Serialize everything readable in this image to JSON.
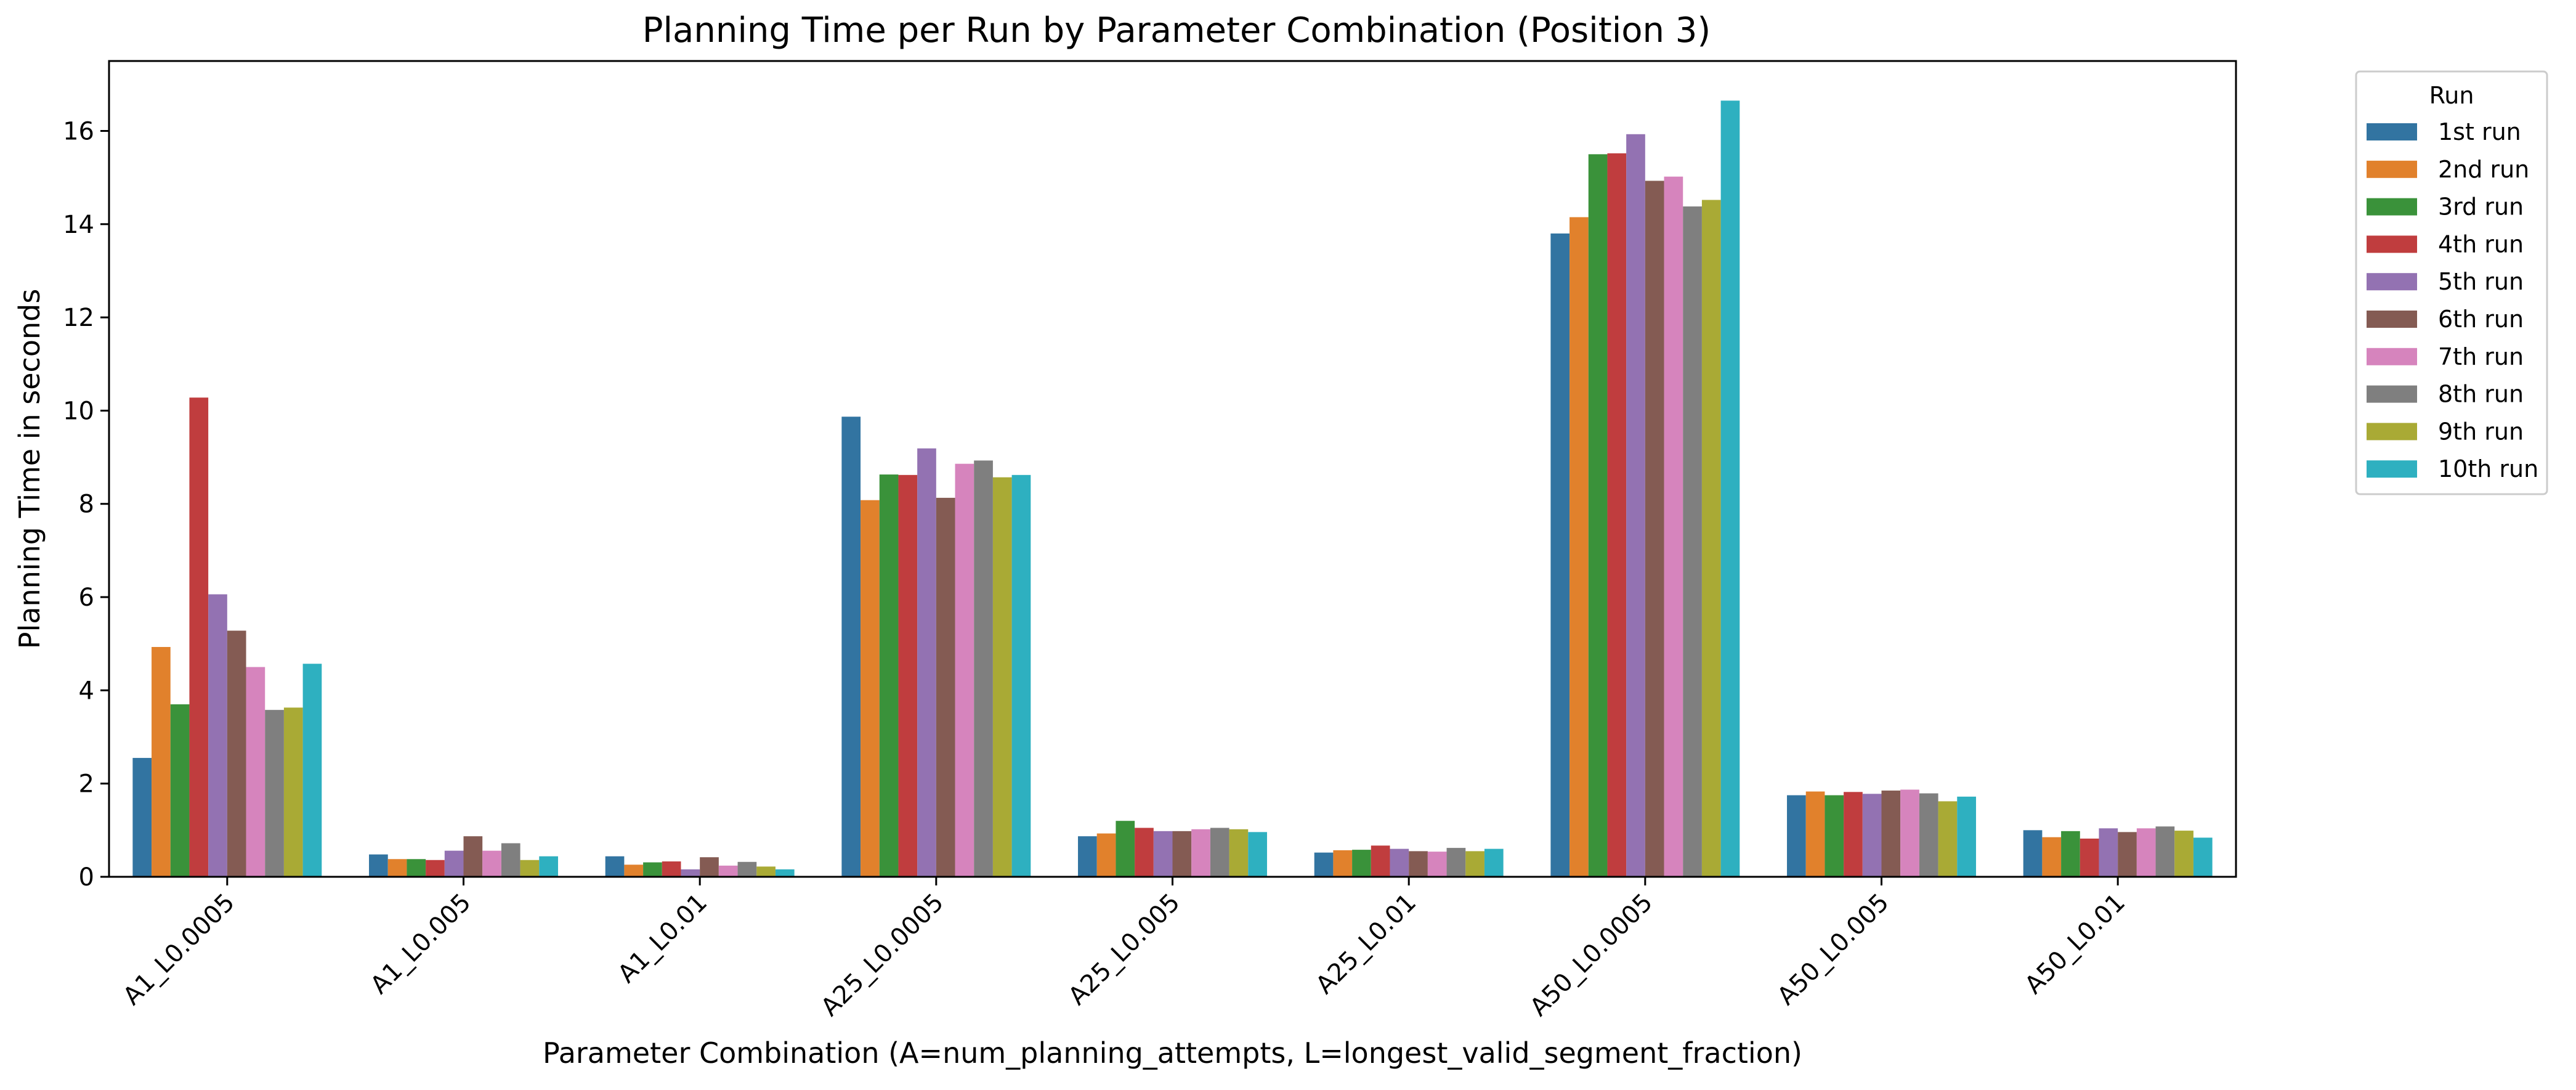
{
  "chart_data": {
    "type": "bar",
    "title": "Planning Time per Run by Parameter Combination (Position 3)",
    "xlabel": "Parameter Combination (A=num_planning_attempts, L=longest_valid_segment_fraction)",
    "ylabel": "Planning Time in seconds",
    "ylim": [
      0,
      17.5
    ],
    "yticks": [
      0,
      2,
      4,
      6,
      8,
      10,
      12,
      14,
      16
    ],
    "grid": false,
    "legend": {
      "title": "Run",
      "placement": "outside-right-top"
    },
    "categories": [
      "A1_L0.0005",
      "A1_L0.005",
      "A1_L0.01",
      "A25_L0.0005",
      "A25_L0.005",
      "A25_L0.01",
      "A50_L0.0005",
      "A50_L0.005",
      "A50_L0.01"
    ],
    "series": [
      {
        "name": "1st run",
        "color": "#3274a1",
        "values": [
          2.55,
          0.48,
          0.44,
          9.87,
          0.87,
          0.52,
          13.8,
          1.75,
          1.0
        ]
      },
      {
        "name": "2nd run",
        "color": "#e1812c",
        "values": [
          4.93,
          0.38,
          0.26,
          8.08,
          0.93,
          0.57,
          14.15,
          1.83,
          0.85
        ]
      },
      {
        "name": "3rd run",
        "color": "#3a923a",
        "values": [
          3.7,
          0.38,
          0.31,
          8.63,
          1.2,
          0.58,
          15.5,
          1.75,
          0.98
        ]
      },
      {
        "name": "4th run",
        "color": "#c03d3e",
        "values": [
          10.28,
          0.36,
          0.33,
          8.62,
          1.05,
          0.67,
          15.52,
          1.82,
          0.82
        ]
      },
      {
        "name": "5th run",
        "color": "#9372b2",
        "values": [
          6.06,
          0.56,
          0.16,
          9.19,
          0.98,
          0.6,
          15.93,
          1.78,
          1.04
        ]
      },
      {
        "name": "6th run",
        "color": "#845b53",
        "values": [
          5.28,
          0.87,
          0.42,
          8.13,
          0.98,
          0.55,
          14.93,
          1.85,
          0.96
        ]
      },
      {
        "name": "7th run",
        "color": "#d684bd",
        "values": [
          4.5,
          0.56,
          0.24,
          8.86,
          1.02,
          0.54,
          15.02,
          1.87,
          1.04
        ]
      },
      {
        "name": "8th run",
        "color": "#7f7f7f",
        "values": [
          3.58,
          0.72,
          0.32,
          8.93,
          1.05,
          0.62,
          14.38,
          1.79,
          1.08
        ]
      },
      {
        "name": "9th run",
        "color": "#a9aa35",
        "values": [
          3.63,
          0.36,
          0.22,
          8.57,
          1.02,
          0.55,
          14.52,
          1.62,
          0.99
        ]
      },
      {
        "name": "10th run",
        "color": "#2eb0c0",
        "values": [
          4.57,
          0.44,
          0.16,
          8.62,
          0.96,
          0.6,
          16.65,
          1.72,
          0.84
        ]
      }
    ]
  }
}
